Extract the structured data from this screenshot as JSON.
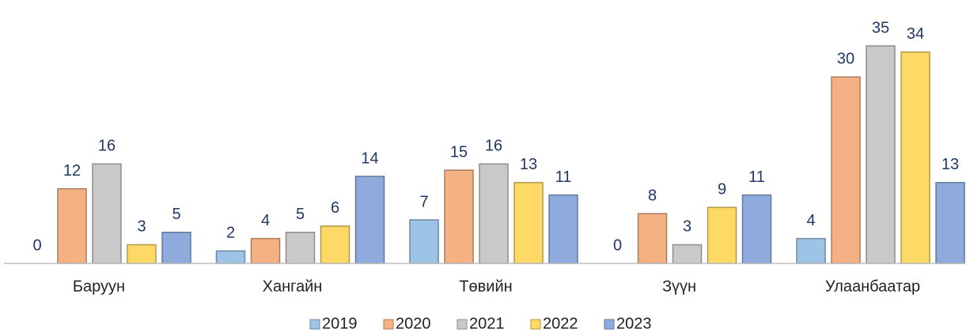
{
  "chart_data": {
    "type": "bar",
    "categories": [
      "Баруун",
      "Хангайн",
      "Төвийн",
      "Зүүн",
      "Улаанбаатар"
    ],
    "series": [
      {
        "name": "2019",
        "color": "#9dc3e6",
        "values": [
          0,
          2,
          7,
          0,
          4
        ]
      },
      {
        "name": "2020",
        "color": "#f4b183",
        "values": [
          12,
          4,
          15,
          8,
          30
        ]
      },
      {
        "name": "2021",
        "color": "#c9c9c9",
        "values": [
          16,
          5,
          16,
          3,
          35
        ]
      },
      {
        "name": "2022",
        "color": "#ffd966",
        "values": [
          3,
          6,
          13,
          9,
          34
        ]
      },
      {
        "name": "2023",
        "color": "#8faadc",
        "values": [
          5,
          14,
          11,
          11,
          13
        ]
      }
    ],
    "legend": "bottom"
  }
}
